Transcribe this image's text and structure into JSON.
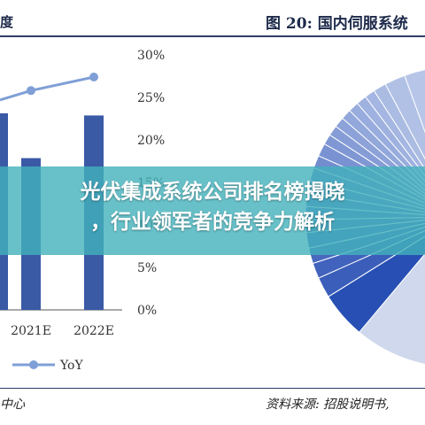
{
  "header": {
    "left_text": "度",
    "right_text": "图 20: 国内伺服系统"
  },
  "footer": {
    "left_text": "中心",
    "right_text": "资料来源: 招股说明书,"
  },
  "banner": {
    "line1": "光伏集成系统公司排名榜揭晓",
    "line2": "，行业领军者的竞争力解析"
  },
  "colors": {
    "bar": "#3a5aa6",
    "line": "#7f9fd6",
    "pie_light": "#cfd8ec",
    "pie_dark": "#2850b4",
    "rule": "#2c3e66"
  },
  "chart_data": [
    {
      "type": "bar",
      "categories": [
        "2021E",
        "2022E"
      ],
      "series": [
        {
          "name": "",
          "values": [
            null,
            null
          ]
        },
        {
          "name": "YoY",
          "values": [
            25.8,
            27.4
          ]
        }
      ],
      "y2_ticks": [
        "0%",
        "5%",
        "10%",
        "15%",
        "20%",
        "25%",
        "30%"
      ],
      "y2lim": [
        0,
        30
      ],
      "legend": {
        "label": "YoY",
        "position": "bottom-left"
      },
      "bars_fraction_of_axis": [
        0.64,
        0.82
      ],
      "line_points_partial_left": true
    },
    {
      "type": "pie",
      "title": "图 20: 国内伺服系统",
      "labels": [],
      "values": [],
      "note": "partial pie, cropped at right edge"
    }
  ]
}
